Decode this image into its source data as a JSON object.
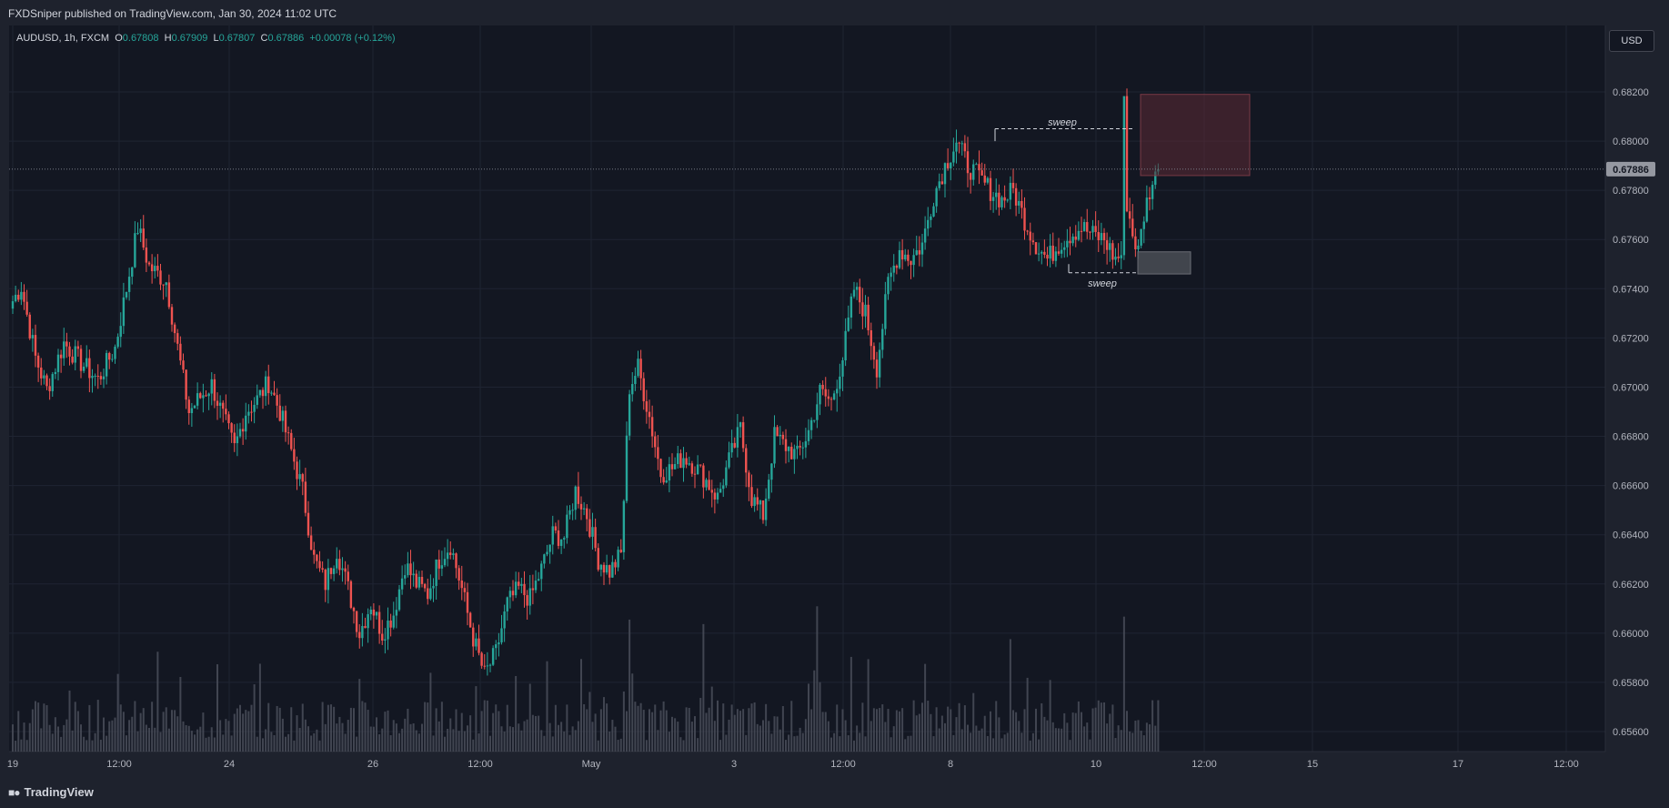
{
  "header": {
    "published_by": "FXDSniper published on TradingView.com, Jan 30, 2024 11:02 UTC"
  },
  "legend": {
    "symbol": "AUDUSD, 1h, FXCM",
    "o_label": "O",
    "o": "0.67808",
    "h_label": "H",
    "h": "0.67909",
    "l_label": "L",
    "l": "0.67807",
    "c_label": "C",
    "c": "0.67886",
    "change": "+0.00078 (+0.12%)"
  },
  "currency_button": "USD",
  "footer": {
    "brand": "TradingView"
  },
  "colors": {
    "up": "#26a69a",
    "down": "#ef5350",
    "background": "#131722",
    "grid": "#1f2432",
    "supply_zone": "#5c2a35",
    "demand_zone": "#4a4d55"
  },
  "chart_data": {
    "type": "candlestick",
    "symbol": "AUDUSD",
    "interval": "1h",
    "ylim": [
      0.6553,
      0.6833
    ],
    "y_ticks": [
      "0.68200",
      "0.68000",
      "0.67800",
      "0.67600",
      "0.67400",
      "0.67200",
      "0.67000",
      "0.66800",
      "0.66600",
      "0.66400",
      "0.66200",
      "0.66000",
      "0.65800",
      "0.65600"
    ],
    "x_ticks": [
      "19",
      "12:00",
      "24",
      "26",
      "12:00",
      "May",
      "3",
      "12:00",
      "8",
      "10",
      "12:00",
      "15",
      "17",
      "12:00"
    ],
    "last_price": "0.67886",
    "close_path": [
      {
        "bar": 0,
        "price": 0.6735
      },
      {
        "bar": 3,
        "price": 0.6741
      },
      {
        "bar": 8,
        "price": 0.6712
      },
      {
        "bar": 12,
        "price": 0.6699
      },
      {
        "bar": 18,
        "price": 0.6718
      },
      {
        "bar": 24,
        "price": 0.671
      },
      {
        "bar": 30,
        "price": 0.6703
      },
      {
        "bar": 36,
        "price": 0.6716
      },
      {
        "bar": 40,
        "price": 0.674
      },
      {
        "bar": 44,
        "price": 0.6765
      },
      {
        "bar": 48,
        "price": 0.6749
      },
      {
        "bar": 54,
        "price": 0.6743
      },
      {
        "bar": 58,
        "price": 0.6716
      },
      {
        "bar": 62,
        "price": 0.669
      },
      {
        "bar": 66,
        "price": 0.6696
      },
      {
        "bar": 70,
        "price": 0.6701
      },
      {
        "bar": 74,
        "price": 0.6688
      },
      {
        "bar": 78,
        "price": 0.6675
      },
      {
        "bar": 82,
        "price": 0.669
      },
      {
        "bar": 86,
        "price": 0.6695
      },
      {
        "bar": 90,
        "price": 0.6702
      },
      {
        "bar": 94,
        "price": 0.669
      },
      {
        "bar": 98,
        "price": 0.6674
      },
      {
        "bar": 102,
        "price": 0.6658
      },
      {
        "bar": 106,
        "price": 0.663
      },
      {
        "bar": 110,
        "price": 0.662
      },
      {
        "bar": 114,
        "price": 0.6634
      },
      {
        "bar": 118,
        "price": 0.6618
      },
      {
        "bar": 122,
        "price": 0.66
      },
      {
        "bar": 126,
        "price": 0.6612
      },
      {
        "bar": 130,
        "price": 0.66
      },
      {
        "bar": 134,
        "price": 0.6608
      },
      {
        "bar": 138,
        "price": 0.6628
      },
      {
        "bar": 142,
        "price": 0.662
      },
      {
        "bar": 146,
        "price": 0.6616
      },
      {
        "bar": 150,
        "price": 0.663
      },
      {
        "bar": 154,
        "price": 0.6636
      },
      {
        "bar": 158,
        "price": 0.6618
      },
      {
        "bar": 162,
        "price": 0.6598
      },
      {
        "bar": 166,
        "price": 0.6583
      },
      {
        "bar": 170,
        "price": 0.6592
      },
      {
        "bar": 174,
        "price": 0.6612
      },
      {
        "bar": 178,
        "price": 0.6618
      },
      {
        "bar": 182,
        "price": 0.6614
      },
      {
        "bar": 186,
        "price": 0.6626
      },
      {
        "bar": 190,
        "price": 0.664
      },
      {
        "bar": 194,
        "price": 0.6639
      },
      {
        "bar": 198,
        "price": 0.6658
      },
      {
        "bar": 202,
        "price": 0.6648
      },
      {
        "bar": 206,
        "price": 0.663
      },
      {
        "bar": 210,
        "price": 0.6625
      },
      {
        "bar": 214,
        "price": 0.6632
      },
      {
        "bar": 217,
        "price": 0.67
      },
      {
        "bar": 220,
        "price": 0.6708
      },
      {
        "bar": 224,
        "price": 0.6688
      },
      {
        "bar": 228,
        "price": 0.6665
      },
      {
        "bar": 232,
        "price": 0.6667
      },
      {
        "bar": 236,
        "price": 0.6672
      },
      {
        "bar": 240,
        "price": 0.6668
      },
      {
        "bar": 244,
        "price": 0.6662
      },
      {
        "bar": 248,
        "price": 0.6655
      },
      {
        "bar": 252,
        "price": 0.667
      },
      {
        "bar": 256,
        "price": 0.6683
      },
      {
        "bar": 260,
        "price": 0.6655
      },
      {
        "bar": 264,
        "price": 0.6648
      },
      {
        "bar": 268,
        "price": 0.668
      },
      {
        "bar": 272,
        "price": 0.6676
      },
      {
        "bar": 276,
        "price": 0.6672
      },
      {
        "bar": 280,
        "price": 0.6682
      },
      {
        "bar": 284,
        "price": 0.6698
      },
      {
        "bar": 288,
        "price": 0.6694
      },
      {
        "bar": 292,
        "price": 0.6712
      },
      {
        "bar": 296,
        "price": 0.674
      },
      {
        "bar": 300,
        "price": 0.673
      },
      {
        "bar": 304,
        "price": 0.6708
      },
      {
        "bar": 308,
        "price": 0.6742
      },
      {
        "bar": 312,
        "price": 0.6756
      },
      {
        "bar": 316,
        "price": 0.6752
      },
      {
        "bar": 320,
        "price": 0.6758
      },
      {
        "bar": 324,
        "price": 0.6778
      },
      {
        "bar": 328,
        "price": 0.679
      },
      {
        "bar": 332,
        "price": 0.68
      },
      {
        "bar": 336,
        "price": 0.679
      },
      {
        "bar": 340,
        "price": 0.6785
      },
      {
        "bar": 344,
        "price": 0.678
      },
      {
        "bar": 348,
        "price": 0.6776
      },
      {
        "bar": 352,
        "price": 0.678
      },
      {
        "bar": 356,
        "price": 0.6768
      },
      {
        "bar": 360,
        "price": 0.6758
      },
      {
        "bar": 364,
        "price": 0.6752
      },
      {
        "bar": 368,
        "price": 0.6758
      },
      {
        "bar": 372,
        "price": 0.6762
      },
      {
        "bar": 376,
        "price": 0.6765
      },
      {
        "bar": 380,
        "price": 0.6762
      },
      {
        "bar": 384,
        "price": 0.676
      },
      {
        "bar": 388,
        "price": 0.6752
      },
      {
        "bar": 390,
        "price": 0.6754
      },
      {
        "bar": 391,
        "price": 0.6815
      },
      {
        "bar": 392,
        "price": 0.6775
      },
      {
        "bar": 394,
        "price": 0.6762
      },
      {
        "bar": 396,
        "price": 0.6755
      },
      {
        "bar": 398,
        "price": 0.677
      },
      {
        "bar": 400,
        "price": 0.678
      },
      {
        "bar": 403,
        "price": 0.6788
      }
    ],
    "annotations": [
      {
        "type": "text",
        "label": "sweep",
        "price": 0.68066
      },
      {
        "type": "text",
        "label": "sweep",
        "price": 0.6744
      }
    ],
    "zones": [
      {
        "name": "supply",
        "top": 0.6819,
        "bottom": 0.6786
      },
      {
        "name": "demand",
        "top": 0.6755,
        "bottom": 0.6746
      }
    ]
  }
}
